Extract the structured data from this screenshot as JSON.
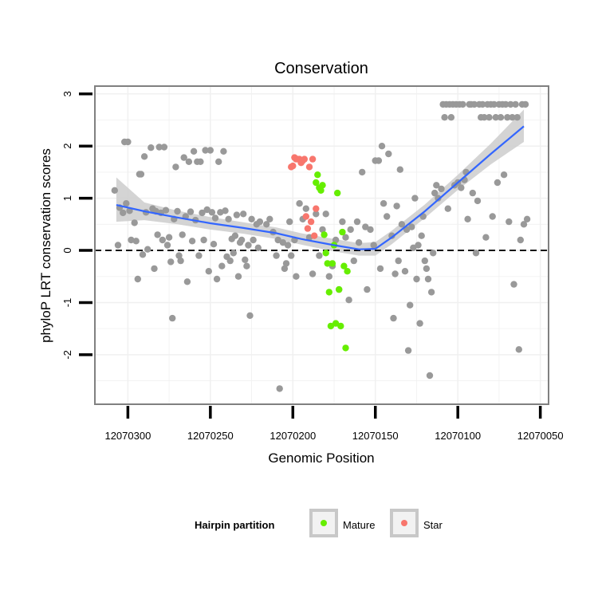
{
  "chart_data": {
    "type": "scatter",
    "title": "Conservation",
    "xlabel": "Genomic Position",
    "ylabel": "phyloP LRT conservation scores",
    "x_reversed": true,
    "xlim": [
      12070045,
      12070320
    ],
    "ylim": [
      -2.95,
      3.15
    ],
    "xticks": [
      12070300,
      12070250,
      12070200,
      12070150,
      12070100,
      12070050
    ],
    "xtick_labels": [
      "12070300",
      "12070250",
      "12070200",
      "12070150",
      "12070100",
      "12070050"
    ],
    "yticks": [
      -2,
      -1,
      0,
      1,
      2,
      3
    ],
    "ytick_labels": [
      "-2",
      "-1",
      "0",
      "1",
      "2",
      "3"
    ],
    "reference_line": {
      "y": 0,
      "style": "dashed"
    },
    "legend": {
      "title": "Hairpin partition",
      "position": "bottom",
      "entries": [
        {
          "label": "Mature",
          "color": "#66ee00"
        },
        {
          "label": "Star",
          "color": "#f8766d"
        }
      ]
    },
    "colors": {
      "other": "#999999",
      "Mature": "#66ee00",
      "Star": "#f8766d",
      "smooth": "#3366ff",
      "band": "#cccccc"
    },
    "smooth": {
      "x": [
        12070307,
        12070290,
        12070270,
        12070250,
        12070230,
        12070210,
        12070195,
        12070175,
        12070160,
        12070150,
        12070140,
        12070120,
        12070100,
        12070080,
        12070060
      ],
      "y": [
        0.87,
        0.75,
        0.63,
        0.52,
        0.43,
        0.33,
        0.22,
        0.1,
        0.02,
        0.03,
        0.25,
        0.75,
        1.3,
        1.85,
        2.38
      ],
      "band_low": [
        0.55,
        0.58,
        0.5,
        0.4,
        0.32,
        0.22,
        0.11,
        -0.02,
        -0.1,
        -0.1,
        0.12,
        0.62,
        1.16,
        1.65,
        2.08
      ],
      "band_high": [
        1.4,
        0.92,
        0.76,
        0.64,
        0.54,
        0.44,
        0.33,
        0.22,
        0.14,
        0.16,
        0.38,
        0.88,
        1.45,
        2.05,
        2.7
      ]
    },
    "series": [
      {
        "name": "Other",
        "points": [
          [
            12070308,
            1.15
          ],
          [
            12070306,
            0.1
          ],
          [
            12070305,
            0.82
          ],
          [
            12070303,
            0.72
          ],
          [
            12070302,
            2.08
          ],
          [
            12070301,
            0.9
          ],
          [
            12070300,
            2.08
          ],
          [
            12070299,
            0.76
          ],
          [
            12070298,
            0.2
          ],
          [
            12070296,
            0.53
          ],
          [
            12070295,
            0.18
          ],
          [
            12070294,
            -0.55
          ],
          [
            12070293,
            1.46
          ],
          [
            12070292,
            1.46
          ],
          [
            12070291,
            -0.08
          ],
          [
            12070290,
            1.8
          ],
          [
            12070289,
            0.73
          ],
          [
            12070288,
            0.02
          ],
          [
            12070286,
            1.97
          ],
          [
            12070285,
            0.8
          ],
          [
            12070284,
            -0.35
          ],
          [
            12070283,
            0.75
          ],
          [
            12070282,
            0.3
          ],
          [
            12070281,
            1.98
          ],
          [
            12070280,
            0.72
          ],
          [
            12070279,
            0.2
          ],
          [
            12070278,
            1.98
          ],
          [
            12070277,
            0.77
          ],
          [
            12070276,
            0.1
          ],
          [
            12070275,
            0.25
          ],
          [
            12070274,
            -0.22
          ],
          [
            12070273,
            -1.3
          ],
          [
            12070272,
            0.6
          ],
          [
            12070271,
            1.6
          ],
          [
            12070270,
            0.75
          ],
          [
            12070269,
            -0.1
          ],
          [
            12070268,
            -0.2
          ],
          [
            12070267,
            0.3
          ],
          [
            12070266,
            1.78
          ],
          [
            12070265,
            0.65
          ],
          [
            12070264,
            -0.6
          ],
          [
            12070263,
            1.7
          ],
          [
            12070262,
            0.74
          ],
          [
            12070261,
            0.18
          ],
          [
            12070260,
            1.9
          ],
          [
            12070259,
            0.58
          ],
          [
            12070258,
            1.7
          ],
          [
            12070257,
            -0.1
          ],
          [
            12070256,
            1.7
          ],
          [
            12070255,
            0.72
          ],
          [
            12070254,
            0.2
          ],
          [
            12070253,
            1.92
          ],
          [
            12070252,
            0.78
          ],
          [
            12070251,
            -0.4
          ],
          [
            12070250,
            1.92
          ],
          [
            12070249,
            0.73
          ],
          [
            12070248,
            0.12
          ],
          [
            12070247,
            0.62
          ],
          [
            12070246,
            -0.55
          ],
          [
            12070245,
            1.7
          ],
          [
            12070244,
            0.73
          ],
          [
            12070243,
            -0.3
          ],
          [
            12070242,
            1.9
          ],
          [
            12070241,
            0.76
          ],
          [
            12070240,
            -0.12
          ],
          [
            12070239,
            0.6
          ],
          [
            12070238,
            -0.2
          ],
          [
            12070237,
            0.22
          ],
          [
            12070236,
            -0.05
          ],
          [
            12070235,
            0.28
          ],
          [
            12070234,
            0.68
          ],
          [
            12070233,
            -0.5
          ],
          [
            12070232,
            0.15
          ],
          [
            12070231,
            0.2
          ],
          [
            12070230,
            0.7
          ],
          [
            12070229,
            -0.18
          ],
          [
            12070228,
            -0.3
          ],
          [
            12070227,
            0.1
          ],
          [
            12070226,
            -1.25
          ],
          [
            12070225,
            0.6
          ],
          [
            12070224,
            0.2
          ],
          [
            12070222,
            0.5
          ],
          [
            12070221,
            0.05
          ],
          [
            12070220,
            0.55
          ],
          [
            12070216,
            0.5
          ],
          [
            12070214,
            0.6
          ],
          [
            12070212,
            0.35
          ],
          [
            12070210,
            -0.1
          ],
          [
            12070209,
            0.2
          ],
          [
            12070208,
            -2.65
          ],
          [
            12070206,
            0.15
          ],
          [
            12070205,
            -0.35
          ],
          [
            12070204,
            -0.25
          ],
          [
            12070203,
            0.1
          ],
          [
            12070202,
            0.55
          ],
          [
            12070201,
            -0.1
          ],
          [
            12070199,
            0.2
          ],
          [
            12070198,
            -0.5
          ],
          [
            12070196,
            0.9
          ],
          [
            12070194,
            0.6
          ],
          [
            12070192,
            0.8
          ],
          [
            12070190,
            0.25
          ],
          [
            12070188,
            -0.45
          ],
          [
            12070186,
            0.7
          ],
          [
            12070184,
            -0.1
          ],
          [
            12070182,
            0.4
          ],
          [
            12070180,
            0.7
          ],
          [
            12070178,
            -0.5
          ],
          [
            12070176,
            -0.3
          ],
          [
            12070174,
            0.2
          ],
          [
            12070172,
            -0.75
          ],
          [
            12070170,
            0.55
          ],
          [
            12070168,
            0.25
          ],
          [
            12070166,
            -0.95
          ],
          [
            12070165,
            0.4
          ],
          [
            12070163,
            -0.2
          ],
          [
            12070161,
            0.55
          ],
          [
            12070160,
            0.15
          ],
          [
            12070158,
            1.5
          ],
          [
            12070156,
            0.45
          ],
          [
            12070155,
            -0.75
          ],
          [
            12070153,
            0.4
          ],
          [
            12070151,
            0.1
          ],
          [
            12070150,
            1.72
          ],
          [
            12070148,
            1.72
          ],
          [
            12070147,
            -0.35
          ],
          [
            12070146,
            2.0
          ],
          [
            12070145,
            0.9
          ],
          [
            12070143,
            0.65
          ],
          [
            12070142,
            1.85
          ],
          [
            12070140,
            0.28
          ],
          [
            12070139,
            -1.3
          ],
          [
            12070138,
            -0.45
          ],
          [
            12070137,
            0.85
          ],
          [
            12070136,
            -0.2
          ],
          [
            12070135,
            1.55
          ],
          [
            12070134,
            0.5
          ],
          [
            12070132,
            -0.4
          ],
          [
            12070131,
            0.4
          ],
          [
            12070130,
            -1.92
          ],
          [
            12070129,
            -1.05
          ],
          [
            12070128,
            0.45
          ],
          [
            12070127,
            0.05
          ],
          [
            12070126,
            1.0
          ],
          [
            12070125,
            -0.55
          ],
          [
            12070124,
            0.1
          ],
          [
            12070123,
            -1.4
          ],
          [
            12070122,
            0.28
          ],
          [
            12070121,
            0.65
          ],
          [
            12070120,
            -0.2
          ],
          [
            12070119,
            -0.35
          ],
          [
            12070118,
            -0.55
          ],
          [
            12070117,
            -2.4
          ],
          [
            12070116,
            -0.8
          ],
          [
            12070115,
            -0.05
          ],
          [
            12070114,
            1.1
          ],
          [
            12070113,
            1.25
          ],
          [
            12070112,
            1.0
          ],
          [
            12070110,
            1.18
          ],
          [
            12070109,
            2.8
          ],
          [
            12070108,
            2.55
          ],
          [
            12070107,
            2.8
          ],
          [
            12070106,
            0.8
          ],
          [
            12070105,
            2.8
          ],
          [
            12070104,
            2.55
          ],
          [
            12070103,
            2.8
          ],
          [
            12070102,
            1.25
          ],
          [
            12070101,
            2.8
          ],
          [
            12070100,
            1.3
          ],
          [
            12070099,
            2.8
          ],
          [
            12070098,
            1.2
          ],
          [
            12070097,
            2.8
          ],
          [
            12070096,
            1.35
          ],
          [
            12070095,
            1.5
          ],
          [
            12070094,
            0.6
          ],
          [
            12070093,
            2.8
          ],
          [
            12070092,
            2.8
          ],
          [
            12070091,
            1.1
          ],
          [
            12070090,
            2.8
          ],
          [
            12070089,
            -0.05
          ],
          [
            12070088,
            0.95
          ],
          [
            12070087,
            2.8
          ],
          [
            12070086,
            2.55
          ],
          [
            12070085,
            2.8
          ],
          [
            12070084,
            2.55
          ],
          [
            12070083,
            0.25
          ],
          [
            12070082,
            2.8
          ],
          [
            12070081,
            2.55
          ],
          [
            12070080,
            2.8
          ],
          [
            12070079,
            0.65
          ],
          [
            12070078,
            2.8
          ],
          [
            12070077,
            2.55
          ],
          [
            12070076,
            1.3
          ],
          [
            12070075,
            2.8
          ],
          [
            12070074,
            2.55
          ],
          [
            12070073,
            2.8
          ],
          [
            12070072,
            1.45
          ],
          [
            12070071,
            2.8
          ],
          [
            12070070,
            2.55
          ],
          [
            12070069,
            0.55
          ],
          [
            12070068,
            2.8
          ],
          [
            12070067,
            2.55
          ],
          [
            12070066,
            -0.65
          ],
          [
            12070065,
            2.8
          ],
          [
            12070064,
            2.55
          ],
          [
            12070063,
            -1.9
          ],
          [
            12070062,
            0.2
          ],
          [
            12070061,
            2.8
          ],
          [
            12070060,
            0.5
          ],
          [
            12070059,
            2.8
          ],
          [
            12070058,
            0.6
          ]
        ]
      },
      {
        "name": "Mature",
        "points": [
          [
            12070186,
            1.3
          ],
          [
            12070185,
            1.45
          ],
          [
            12070184,
            1.2
          ],
          [
            12070183,
            1.15
          ],
          [
            12070182,
            1.25
          ],
          [
            12070181,
            0.3
          ],
          [
            12070180,
            -0.05
          ],
          [
            12070179,
            -0.25
          ],
          [
            12070178,
            -0.8
          ],
          [
            12070177,
            -1.45
          ],
          [
            12070176,
            -0.25
          ],
          [
            12070175,
            0.1
          ],
          [
            12070174,
            -1.4
          ],
          [
            12070173,
            1.1
          ],
          [
            12070172,
            -0.75
          ],
          [
            12070171,
            -1.45
          ],
          [
            12070170,
            0.35
          ],
          [
            12070169,
            -0.3
          ],
          [
            12070168,
            -1.87
          ],
          [
            12070167,
            -0.4
          ]
        ]
      },
      {
        "name": "Star",
        "points": [
          [
            12070201,
            1.6
          ],
          [
            12070200,
            1.62
          ],
          [
            12070199,
            1.78
          ],
          [
            12070198,
            1.75
          ],
          [
            12070197,
            1.75
          ],
          [
            12070196,
            1.75
          ],
          [
            12070195,
            1.68
          ],
          [
            12070194,
            1.72
          ],
          [
            12070193,
            1.75
          ],
          [
            12070192,
            0.65
          ],
          [
            12070191,
            0.42
          ],
          [
            12070190,
            1.6
          ],
          [
            12070189,
            0.55
          ],
          [
            12070188,
            1.75
          ],
          [
            12070187,
            0.28
          ],
          [
            12070186,
            0.8
          ]
        ]
      }
    ]
  }
}
